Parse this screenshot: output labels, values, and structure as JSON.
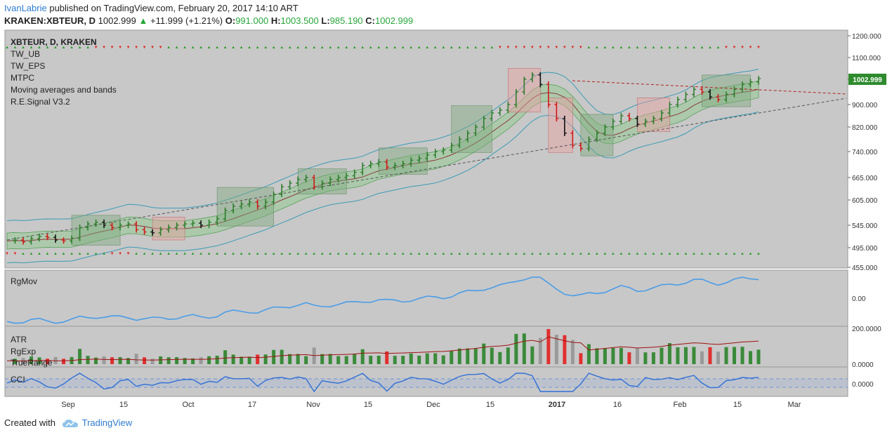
{
  "header": {
    "author": "IvanLabrie",
    "published": "published on TradingView.com, February 20, 2017 14:10 ART",
    "symbol": "KRAKEN:XBTEUR, D",
    "last": "1002.999",
    "change": "+11.999 (+1.21%)",
    "o_label": "O:",
    "o": "991.000",
    "h_label": "H:",
    "h": "1003.500",
    "l_label": "L:",
    "l": "985.190",
    "c_label": "C:",
    "c": "1002.999"
  },
  "legend": {
    "title": "XBTEUR, D, KRAKEN",
    "items": [
      "TW_UB",
      "TW_EPS",
      "MTPC",
      "Moving averages and bands",
      "R.E.Signal V3.2"
    ]
  },
  "panes": {
    "rgmov": "RgMov",
    "atr": [
      "ATR",
      "RgExp",
      "TrueRange"
    ],
    "cci": "CCI"
  },
  "price_badge": "1002.999",
  "footer": {
    "created_with": "Created with",
    "brand": "TradingView"
  },
  "colors": {
    "up": "#2e8b2e",
    "down": "#e02020",
    "upper_band": "#3a9bb5",
    "rgmov": "#4a9de8",
    "atr_line": "#a01010",
    "bg": "#c8c8c8",
    "fill_green": "#8fbf8f",
    "fill_red": "#e8a0a0"
  },
  "chart_data": {
    "type": "line",
    "title": "XBTEUR, D, KRAKEN",
    "y_ticks": [
      "1200.000",
      "1100.000",
      "1000.000",
      "900.000",
      "820.000",
      "740.000",
      "665.000",
      "605.000",
      "545.000",
      "495.000",
      "455.000"
    ],
    "x_ticks": [
      "Sep",
      "15",
      "Oct",
      "17",
      "Nov",
      "15",
      "Dec",
      "15",
      "2017",
      "16",
      "Feb",
      "15",
      "Mar"
    ],
    "rgmov_tick": "0.00",
    "atr_ticks": [
      "200.0000",
      "0.0000"
    ],
    "cci_tick": "0.0000",
    "close_values": [
      510,
      512,
      508,
      515,
      520,
      518,
      512,
      510,
      516,
      540,
      548,
      552,
      545,
      540,
      545,
      548,
      535,
      530,
      528,
      535,
      540,
      545,
      548,
      550,
      545,
      552,
      560,
      580,
      590,
      595,
      600,
      590,
      600,
      620,
      640,
      650,
      660,
      665,
      640,
      650,
      660,
      665,
      670,
      680,
      700,
      705,
      710,
      695,
      700,
      705,
      715,
      720,
      730,
      740,
      745,
      760,
      780,
      800,
      820,
      850,
      870,
      880,
      900,
      950,
      1000,
      1020,
      980,
      900,
      850,
      800,
      760,
      750,
      780,
      800,
      820,
      840,
      860,
      850,
      830,
      840,
      850,
      870,
      900,
      920,
      940,
      960,
      950,
      930,
      920,
      940,
      960,
      980,
      990,
      1002.999
    ]
  }
}
